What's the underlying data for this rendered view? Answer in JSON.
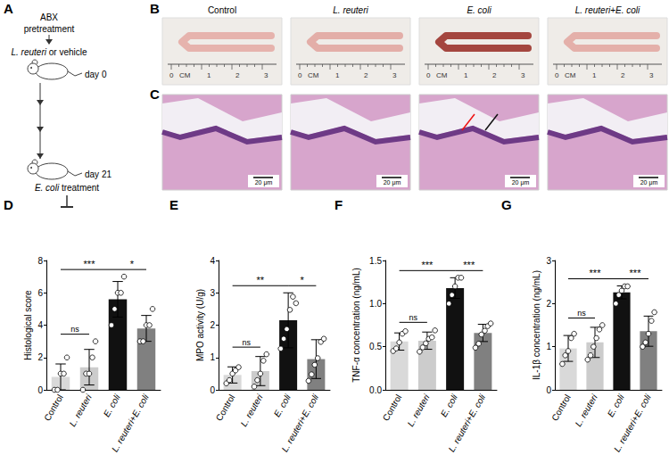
{
  "schematic": {
    "label": "A",
    "pretreatment": [
      "ABX",
      "pretreatment"
    ],
    "treatment": "L. reuteri or vehicle",
    "start": "day 0",
    "end": "day 21",
    "challenge": "E. coli treatment"
  },
  "photos": {
    "label": "B",
    "groups": [
      "Control",
      "L. reuteri",
      "E. coli",
      "L. reuteri+E. coli"
    ],
    "tissue_colors": [
      "#e6b3ad",
      "#e3aea8",
      "#a4463f",
      "#e4b0aa"
    ],
    "ruler": [
      "0",
      "CM",
      "1",
      "2",
      "3"
    ]
  },
  "histology": {
    "label": "C",
    "scale_bar": "20 μm"
  },
  "chart_data": [
    {
      "type": "bar",
      "title": "D",
      "y_label": "Histological score",
      "categories": [
        "Control",
        "L. reuteri",
        "E. coli",
        "L. reuteri+E. coli"
      ],
      "values": [
        0.8,
        1.4,
        5.6,
        3.8
      ],
      "errors": [
        0.8,
        1.1,
        1.1,
        0.8
      ],
      "points": [
        [
          0,
          0,
          1,
          1,
          2
        ],
        [
          0,
          1,
          1,
          2,
          3
        ],
        [
          4,
          5,
          6,
          6,
          7
        ],
        [
          3,
          3,
          4,
          4,
          5
        ]
      ],
      "colors": [
        "#d9d9d9",
        "#cccccc",
        "#111111",
        "#808080"
      ],
      "ylim": [
        0,
        8
      ],
      "yticks": [
        0,
        2,
        4,
        6,
        8
      ],
      "grid": false,
      "annotations": [
        {
          "from": 0,
          "to": 1,
          "label": "ns"
        },
        {
          "from": 0,
          "to": 2,
          "label": "***"
        },
        {
          "from": 2,
          "to": 3,
          "label": "*"
        }
      ]
    },
    {
      "type": "bar",
      "title": "E",
      "y_label": "MPO activity (U/g)",
      "categories": [
        "Control",
        "L. reuteri",
        "E. coli",
        "L. reuteri+E. coli"
      ],
      "values": [
        0.46,
        0.58,
        2.15,
        0.95
      ],
      "errors": [
        0.25,
        0.45,
        0.85,
        0.6
      ],
      "points": [
        [
          0.2,
          0.3,
          0.5,
          0.6,
          0.7
        ],
        [
          0.1,
          0.3,
          0.5,
          0.9,
          1.1
        ],
        [
          1.3,
          1.6,
          1.9,
          2.5,
          2.9,
          2.7
        ],
        [
          0.3,
          0.5,
          0.8,
          1.0,
          1.5,
          1.6
        ]
      ],
      "colors": [
        "#d9d9d9",
        "#cccccc",
        "#111111",
        "#808080"
      ],
      "ylim": [
        0,
        4
      ],
      "yticks": [
        0,
        1,
        2,
        3,
        4
      ],
      "grid": false,
      "annotations": [
        {
          "from": 0,
          "to": 1,
          "label": "ns"
        },
        {
          "from": 0,
          "to": 2,
          "label": "**"
        },
        {
          "from": 2,
          "to": 3,
          "label": "*"
        }
      ]
    },
    {
      "type": "bar",
      "title": "F",
      "y_label": "TNF-α concentration (ng/mL)",
      "categories": [
        "Control",
        "L. reuteri",
        "E. coli",
        "L. reuteri+E. coli"
      ],
      "values": [
        0.56,
        0.57,
        1.18,
        0.66
      ],
      "errors": [
        0.1,
        0.1,
        0.12,
        0.1
      ],
      "points": [
        [
          0.45,
          0.48,
          0.55,
          0.65,
          0.68
        ],
        [
          0.45,
          0.5,
          0.55,
          0.6,
          0.62,
          0.7
        ],
        [
          1.0,
          1.1,
          1.2,
          1.3,
          1.3
        ],
        [
          0.5,
          0.55,
          0.65,
          0.7,
          0.75,
          0.78
        ]
      ],
      "colors": [
        "#d9d9d9",
        "#cccccc",
        "#111111",
        "#808080"
      ],
      "ylim": [
        0,
        1.5
      ],
      "yticks": [
        {
          "value": 0,
          "label": "0.0"
        },
        0.5,
        {
          "value": 1,
          "label": "1.0"
        },
        1.5
      ],
      "grid": false,
      "annotations": [
        {
          "from": 0,
          "to": 1,
          "label": "ns"
        },
        {
          "from": 0,
          "to": 2,
          "label": "***"
        },
        {
          "from": 2,
          "to": 3,
          "label": "***"
        }
      ]
    },
    {
      "type": "bar",
      "title": "G",
      "y_label": "IL-1β concentration (ng/mL)",
      "categories": [
        "Control",
        "L. reuteri",
        "E. coli",
        "L. reuteri+E. coli"
      ],
      "values": [
        0.96,
        1.1,
        2.26,
        1.36
      ],
      "errors": [
        0.3,
        0.35,
        0.15,
        0.35
      ],
      "points": [
        [
          0.6,
          0.8,
          0.9,
          1.2,
          1.3
        ],
        [
          0.7,
          0.8,
          1.0,
          1.2,
          1.4,
          1.5
        ],
        [
          2.0,
          2.2,
          2.3,
          2.4,
          2.4
        ],
        [
          1.0,
          1.1,
          1.3,
          1.6,
          1.8
        ]
      ],
      "colors": [
        "#d9d9d9",
        "#cccccc",
        "#111111",
        "#808080"
      ],
      "ylim": [
        0,
        3
      ],
      "yticks": [
        0,
        1,
        2,
        3
      ],
      "grid": false,
      "annotations": [
        {
          "from": 0,
          "to": 1,
          "label": "ns"
        },
        {
          "from": 0,
          "to": 2,
          "label": "***"
        },
        {
          "from": 2,
          "to": 3,
          "label": "***"
        }
      ]
    }
  ]
}
